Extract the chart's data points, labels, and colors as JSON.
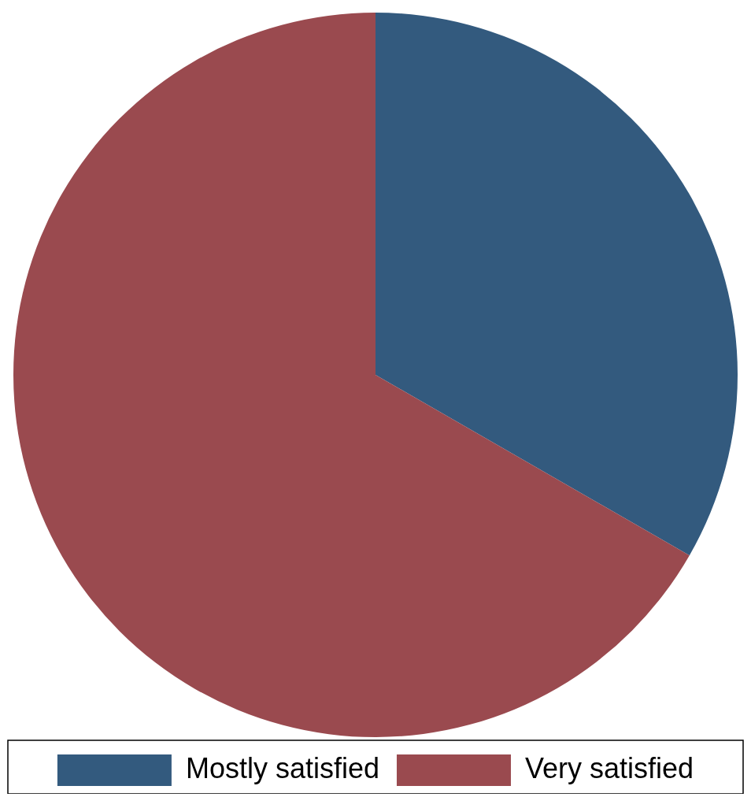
{
  "chart_data": {
    "type": "pie",
    "categories": [
      "Mostly satisfied",
      "Very satisfied"
    ],
    "values": [
      33.3,
      66.7
    ],
    "colors": [
      "#335a7e",
      "#9a4a4f"
    ],
    "legend": "bottom"
  }
}
